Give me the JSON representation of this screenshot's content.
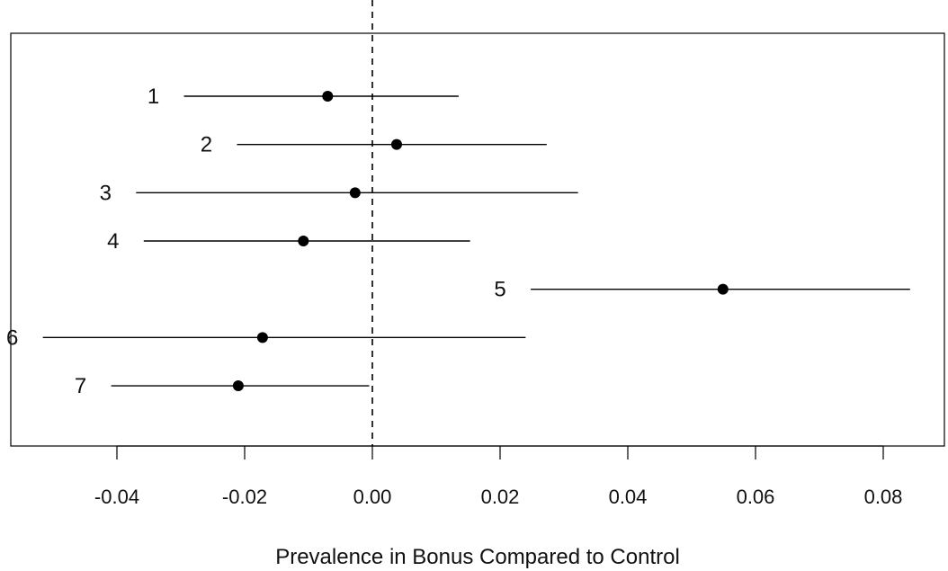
{
  "chart_data": {
    "type": "scatter",
    "subtype": "forest-plot-with-intervals",
    "title": "",
    "xlabel": "Prevalence in Bonus Compared to Control",
    "ylabel": "",
    "xlim": [
      -0.0565,
      0.0895
    ],
    "x_ticks": [
      {
        "value": -0.04,
        "label": "-0.04"
      },
      {
        "value": -0.02,
        "label": "-0.02"
      },
      {
        "value": 0.0,
        "label": "0.00"
      },
      {
        "value": 0.02,
        "label": "0.02"
      },
      {
        "value": 0.04,
        "label": "0.04"
      },
      {
        "value": 0.06,
        "label": "0.06"
      },
      {
        "value": 0.08,
        "label": "0.08"
      }
    ],
    "reference_line": {
      "x": 0,
      "style": "dashed"
    },
    "grid": false,
    "legend": "none",
    "points": [
      {
        "label": "1",
        "estimate": -0.007,
        "lower": -0.0295,
        "upper": 0.0135
      },
      {
        "label": "2",
        "estimate": 0.0038,
        "lower": -0.0212,
        "upper": 0.0273
      },
      {
        "label": "3",
        "estimate": -0.0027,
        "lower": -0.037,
        "upper": 0.0322
      },
      {
        "label": "4",
        "estimate": -0.0108,
        "lower": -0.0358,
        "upper": 0.0153
      },
      {
        "label": "5",
        "estimate": 0.0549,
        "lower": 0.0248,
        "upper": 0.0842
      },
      {
        "label": "6",
        "estimate": -0.0172,
        "lower": -0.0516,
        "upper": 0.024
      },
      {
        "label": "7",
        "estimate": -0.021,
        "lower": -0.0409,
        "upper": -0.0005
      }
    ],
    "colors": {
      "marker": "#000000",
      "interval": "#000000",
      "axis": "#000000",
      "text": "#111111"
    }
  }
}
